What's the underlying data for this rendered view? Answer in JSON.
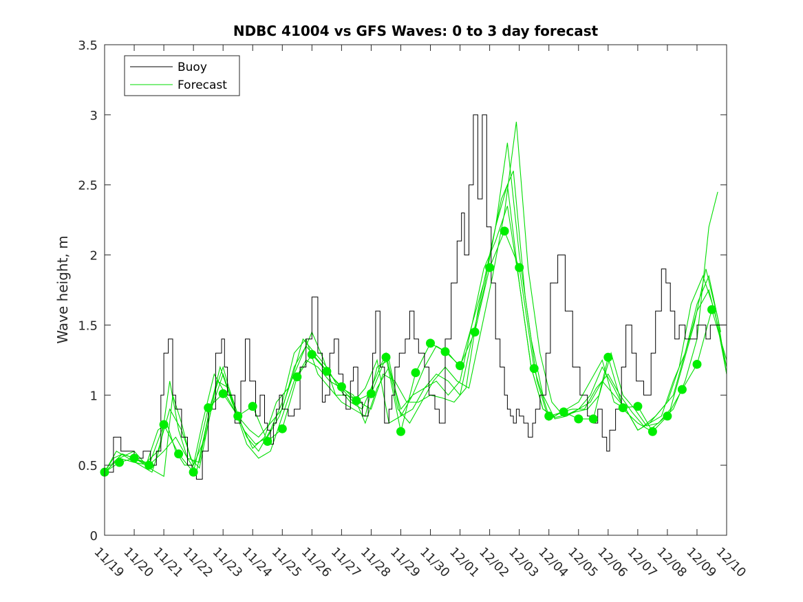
{
  "chart_data": {
    "type": "line",
    "title": "NDBC 41004 vs GFS Waves: 0 to 3 day forecast",
    "xlabel": "",
    "ylabel": "Wave height, m",
    "xlim": [
      0,
      21
    ],
    "ylim": [
      0,
      3.5
    ],
    "yticks": [
      0,
      0.5,
      1,
      1.5,
      2,
      2.5,
      3,
      3.5
    ],
    "ytick_labels": [
      "0",
      "0.5",
      "1",
      "1.5",
      "2",
      "2.5",
      "3",
      "3.5"
    ],
    "xtick_labels": [
      "11/19",
      "11/20",
      "11/21",
      "11/22",
      "11/23",
      "11/24",
      "11/25",
      "11/26",
      "11/27",
      "11/28",
      "11/29",
      "11/30",
      "12/01",
      "12/02",
      "12/03",
      "12/04",
      "12/05",
      "12/06",
      "12/07",
      "12/08",
      "12/09",
      "12/10"
    ],
    "legend": {
      "position": "top-left",
      "entries": [
        {
          "name": "Buoy",
          "color": "#000000"
        },
        {
          "name": "Forecast",
          "color": "#00dd00"
        }
      ]
    },
    "colors": {
      "buoy": "#000000",
      "forecast": "#00dd00",
      "marker": "#00ee00",
      "axis": "#262626"
    },
    "buoy": {
      "x": [
        0,
        0.3,
        0.55,
        0.8,
        1.0,
        1.3,
        1.55,
        1.75,
        1.9,
        2.0,
        2.15,
        2.3,
        2.4,
        2.6,
        2.8,
        2.95,
        3.1,
        3.3,
        3.5,
        3.75,
        3.95,
        4.05,
        4.15,
        4.4,
        4.6,
        4.75,
        4.9,
        5.1,
        5.25,
        5.4,
        5.5,
        5.6,
        5.7,
        5.8,
        5.9,
        6.0,
        6.2,
        6.4,
        6.6,
        6.8,
        7.0,
        7.2,
        7.35,
        7.45,
        7.6,
        7.75,
        7.9,
        8.05,
        8.15,
        8.3,
        8.4,
        8.55,
        8.7,
        8.9,
        9.05,
        9.15,
        9.3,
        9.45,
        9.6,
        9.7,
        9.8,
        9.95,
        10.15,
        10.3,
        10.45,
        10.6,
        10.8,
        10.95,
        11.15,
        11.3,
        11.5,
        11.7,
        11.9,
        12.05,
        12.15,
        12.3,
        12.45,
        12.6,
        12.75,
        12.9,
        13.05,
        13.2,
        13.35,
        13.5,
        13.6,
        13.7,
        13.8,
        13.9,
        14.0,
        14.15,
        14.3,
        14.45,
        14.55,
        14.7,
        14.9,
        15.05,
        15.3,
        15.55,
        15.8,
        16.05,
        16.3,
        16.5,
        16.65,
        16.8,
        16.95,
        17.05,
        17.25,
        17.45,
        17.6,
        17.8,
        17.95,
        18.2,
        18.45,
        18.6,
        18.8,
        18.95,
        19.1,
        19.25,
        19.4,
        19.6,
        19.8,
        20.0,
        20.15,
        20.3,
        20.45,
        20.65,
        21.0
      ],
      "y": [
        0.45,
        0.7,
        0.6,
        0.6,
        0.55,
        0.6,
        0.5,
        0.6,
        1.0,
        1.3,
        1.4,
        1.0,
        0.9,
        0.7,
        0.5,
        0.45,
        0.4,
        0.6,
        0.9,
        1.3,
        1.4,
        1.2,
        1.0,
        0.8,
        1.1,
        1.4,
        1.1,
        0.85,
        1.0,
        0.8,
        0.75,
        0.65,
        0.8,
        0.9,
        1.0,
        0.9,
        0.85,
        0.9,
        1.2,
        1.4,
        1.7,
        1.3,
        0.95,
        1.0,
        1.3,
        1.4,
        1.15,
        1.0,
        0.9,
        1.1,
        1.2,
        0.95,
        0.85,
        1.0,
        1.3,
        1.6,
        1.2,
        0.8,
        0.9,
        1.0,
        1.2,
        1.3,
        1.4,
        1.6,
        1.4,
        1.3,
        1.2,
        1.0,
        0.9,
        0.8,
        1.4,
        1.8,
        2.1,
        2.3,
        2.0,
        2.5,
        3.0,
        2.4,
        3.0,
        2.2,
        1.8,
        1.4,
        1.2,
        1.0,
        0.9,
        0.85,
        0.8,
        0.9,
        0.85,
        0.8,
        0.7,
        0.8,
        0.9,
        1.0,
        1.3,
        1.8,
        2.0,
        1.6,
        1.2,
        1.0,
        0.85,
        0.8,
        0.9,
        0.7,
        0.6,
        0.75,
        0.9,
        1.2,
        1.5,
        1.3,
        1.1,
        1.0,
        1.3,
        1.6,
        1.9,
        1.8,
        1.6,
        1.4,
        1.5,
        1.4,
        1.4,
        1.5,
        1.5,
        1.4,
        1.5,
        1.5,
        1.5
      ]
    },
    "markers": {
      "x": [
        0,
        0.5,
        1,
        1.5,
        2,
        2.5,
        3,
        3.5,
        4,
        4.5,
        5,
        5.5,
        6,
        6.5,
        7,
        7.5,
        8,
        8.5,
        9,
        9.5,
        10,
        10.5,
        11,
        11.5,
        12,
        12.5,
        13,
        13.5,
        14,
        14.5,
        15,
        15.5,
        16,
        16.5,
        17,
        17.5,
        18,
        18.5,
        19,
        19.5,
        20,
        20.5
      ],
      "y": [
        0.45,
        0.52,
        0.55,
        0.5,
        0.79,
        0.58,
        0.45,
        0.91,
        1.01,
        0.85,
        0.92,
        0.67,
        0.76,
        1.13,
        1.29,
        1.17,
        1.06,
        0.96,
        1.01,
        1.27,
        0.74,
        1.16,
        1.37,
        1.31,
        1.21,
        1.45,
        1.91,
        2.17,
        1.91,
        1.19,
        0.85,
        0.88,
        0.83,
        0.83,
        1.27,
        0.91,
        0.92,
        0.74,
        0.85,
        1.04,
        1.22,
        1.61
      ]
    },
    "forecast_series": [
      {
        "name": "Forecast run 1",
        "x": [
          0,
          0.3,
          0.6,
          1.0,
          1.4,
          1.8,
          2.1,
          2.4,
          2.7,
          3.0,
          3.3,
          3.7,
          4.1,
          4.5,
          4.9,
          5.2,
          5.6,
          6.0,
          6.4,
          6.8,
          7.2,
          7.6,
          8.0,
          8.4,
          8.8,
          9.2,
          9.6,
          10.0,
          10.4,
          10.8,
          11.2,
          11.6,
          12.0,
          12.4,
          12.8,
          13.2,
          13.6,
          14.0,
          14.4,
          14.8,
          15.2,
          15.6,
          16.0,
          16.4,
          16.8,
          17.2,
          17.6,
          18.0,
          18.4,
          18.8,
          19.2,
          19.6,
          20.0,
          20.4,
          20.7,
          21.0
        ],
        "y": [
          0.45,
          0.55,
          0.58,
          0.55,
          0.5,
          0.75,
          0.8,
          0.6,
          0.5,
          0.5,
          0.8,
          1.15,
          1.0,
          0.85,
          0.75,
          0.7,
          0.8,
          0.9,
          1.2,
          1.35,
          1.25,
          1.15,
          1.05,
          0.95,
          1.05,
          1.25,
          0.8,
          0.85,
          1.0,
          1.2,
          1.35,
          1.3,
          1.2,
          1.5,
          1.9,
          2.1,
          2.35,
          1.8,
          1.2,
          0.9,
          0.85,
          0.9,
          0.95,
          1.1,
          1.25,
          0.95,
          0.9,
          0.75,
          0.8,
          0.85,
          1.1,
          1.3,
          1.6,
          1.75,
          1.5,
          1.2
        ]
      },
      {
        "name": "Forecast run 2",
        "x": [
          0,
          0.4,
          0.8,
          1.2,
          1.6,
          1.9,
          2.2,
          2.5,
          2.8,
          3.1,
          3.5,
          3.9,
          4.3,
          4.7,
          5.1,
          5.5,
          5.9,
          6.3,
          6.7,
          7.1,
          7.5,
          7.9,
          8.3,
          8.7,
          9.1,
          9.5,
          9.9,
          10.3,
          10.7,
          11.1,
          11.5,
          11.9,
          12.3,
          12.7,
          13.1,
          13.5,
          13.9,
          14.3,
          14.7,
          15.1,
          15.5,
          15.9,
          16.3,
          16.7,
          17.1,
          17.5,
          17.9,
          18.3,
          18.7,
          19.1,
          19.5,
          19.9,
          20.3,
          20.7,
          21.0
        ],
        "y": [
          0.45,
          0.6,
          0.55,
          0.5,
          0.45,
          0.65,
          1.1,
          0.75,
          0.55,
          0.45,
          0.85,
          1.2,
          0.95,
          0.75,
          0.65,
          0.7,
          0.85,
          1.1,
          1.4,
          1.3,
          1.2,
          1.05,
          0.95,
          0.9,
          1.1,
          1.3,
          0.9,
          0.8,
          0.95,
          1.1,
          1.2,
          1.1,
          1.05,
          1.45,
          1.85,
          2.3,
          2.95,
          1.9,
          1.3,
          0.95,
          0.85,
          0.88,
          0.9,
          1.0,
          1.3,
          1.0,
          0.9,
          0.78,
          0.8,
          0.9,
          1.2,
          1.5,
          1.9,
          1.55,
          1.15
        ]
      },
      {
        "name": "Forecast run 3",
        "x": [
          0,
          0.5,
          1.0,
          1.5,
          2.0,
          2.3,
          2.6,
          2.9,
          3.2,
          3.6,
          4.0,
          4.4,
          4.8,
          5.2,
          5.6,
          6.0,
          6.4,
          6.8,
          7.2,
          7.6,
          8.0,
          8.4,
          8.8,
          9.2,
          9.6,
          10.0,
          10.4,
          10.8,
          11.2,
          11.6,
          12.0,
          12.4,
          12.8,
          13.2,
          13.6,
          14.0,
          14.4,
          14.8,
          15.2,
          15.6,
          16.0,
          16.4,
          16.8,
          17.2,
          17.6,
          18.0,
          18.4,
          18.8,
          19.2,
          19.6,
          20.0,
          20.4,
          20.7
        ],
        "y": [
          0.45,
          0.55,
          0.6,
          0.48,
          0.42,
          1.0,
          0.8,
          0.55,
          0.48,
          0.9,
          1.15,
          0.9,
          0.7,
          0.6,
          0.75,
          0.95,
          1.3,
          1.4,
          1.15,
          1.05,
          0.95,
          0.9,
          0.85,
          1.2,
          1.25,
          0.85,
          0.9,
          1.05,
          1.15,
          1.1,
          1.0,
          1.4,
          1.75,
          2.2,
          2.8,
          2.0,
          1.4,
          1.0,
          0.83,
          0.85,
          0.9,
          1.0,
          1.2,
          1.05,
          0.88,
          0.8,
          0.75,
          0.82,
          0.9,
          1.1,
          1.4,
          2.2,
          2.45
        ]
      },
      {
        "name": "Forecast run 4",
        "x": [
          0,
          0.5,
          1.0,
          1.5,
          2.0,
          2.5,
          3.0,
          3.5,
          4.0,
          4.5,
          5.0,
          5.5,
          6.0,
          6.5,
          7.0,
          7.5,
          8.0,
          8.5,
          9.0,
          9.5,
          10.0,
          10.5,
          11.0,
          11.5,
          12.0,
          12.5,
          13.0,
          13.5,
          14.0,
          14.5,
          15.0,
          15.5,
          16.0,
          16.5,
          17.0,
          17.5,
          18.0,
          18.5,
          19.0,
          19.5,
          20.0,
          20.5,
          21.0
        ],
        "y": [
          0.45,
          0.52,
          0.55,
          0.5,
          0.79,
          0.58,
          0.45,
          0.91,
          1.01,
          0.85,
          0.92,
          0.67,
          0.76,
          1.13,
          1.29,
          1.17,
          1.06,
          0.96,
          1.01,
          1.27,
          0.74,
          1.16,
          1.37,
          1.31,
          1.21,
          1.45,
          1.91,
          2.17,
          1.91,
          1.19,
          0.85,
          0.88,
          0.83,
          0.83,
          1.27,
          0.91,
          0.92,
          0.74,
          0.85,
          1.04,
          1.22,
          1.61,
          1.25
        ]
      },
      {
        "name": "Forecast run 5",
        "x": [
          0.2,
          0.6,
          1.0,
          1.4,
          1.8,
          2.2,
          2.6,
          3.0,
          3.4,
          3.8,
          4.2,
          4.6,
          5.0,
          5.4,
          5.8,
          6.2,
          6.6,
          7.0,
          7.4,
          7.8,
          8.2,
          8.6,
          9.0,
          9.4,
          9.8,
          10.2,
          10.6,
          11.0,
          11.4,
          11.8,
          12.2,
          12.6,
          13.0,
          13.4,
          13.8,
          14.2,
          14.6,
          15.0,
          15.4,
          15.8,
          16.2,
          16.6,
          17.0,
          17.4,
          17.8,
          18.2,
          18.6,
          19.0,
          19.4,
          19.8,
          20.2,
          20.6,
          21.0
        ],
        "y": [
          0.5,
          0.58,
          0.55,
          0.52,
          0.6,
          0.9,
          0.75,
          0.5,
          0.7,
          1.1,
          1.05,
          0.8,
          0.62,
          0.7,
          0.95,
          1.05,
          1.25,
          1.45,
          1.25,
          1.0,
          1.0,
          0.95,
          0.9,
          1.15,
          1.1,
          0.95,
          0.95,
          1.0,
          0.98,
          0.95,
          1.05,
          1.6,
          2.0,
          2.4,
          2.6,
          1.7,
          1.1,
          0.82,
          0.88,
          0.9,
          0.9,
          1.05,
          1.15,
          1.0,
          0.88,
          0.78,
          0.85,
          0.95,
          1.2,
          1.65,
          1.85,
          1.6,
          1.15
        ]
      },
      {
        "name": "Forecast run 6",
        "x": [
          0,
          0.5,
          1.0,
          1.5,
          2.0,
          2.4,
          2.8,
          3.2,
          3.6,
          4.0,
          4.4,
          4.8,
          5.2,
          5.6,
          6.0,
          6.4,
          6.8,
          7.2,
          7.6,
          8.0,
          8.4,
          8.8,
          9.2,
          9.6,
          10.0,
          10.4,
          10.8,
          11.2,
          11.6,
          12.0,
          12.4,
          12.8,
          13.2,
          13.6,
          14.0,
          14.4,
          14.8,
          15.2,
          15.6,
          16.0,
          16.4,
          16.8,
          17.2,
          17.6,
          18.0,
          18.4,
          18.8,
          19.2,
          19.6,
          20.0,
          20.4,
          20.8
        ],
        "y": [
          0.45,
          0.55,
          0.52,
          0.5,
          0.6,
          0.7,
          0.55,
          0.52,
          0.95,
          1.2,
          0.9,
          0.65,
          0.55,
          0.6,
          0.85,
          1.1,
          1.25,
          1.2,
          1.1,
          1.05,
          1.0,
          0.8,
          1.05,
          1.2,
          0.9,
          1.0,
          1.05,
          1.1,
          1.0,
          1.1,
          1.5,
          1.8,
          2.2,
          2.5,
          1.8,
          1.2,
          0.9,
          0.84,
          0.86,
          0.9,
          0.95,
          1.1,
          1.0,
          0.9,
          0.75,
          0.8,
          0.9,
          1.0,
          1.3,
          1.65,
          1.85,
          1.45
        ]
      }
    ]
  }
}
